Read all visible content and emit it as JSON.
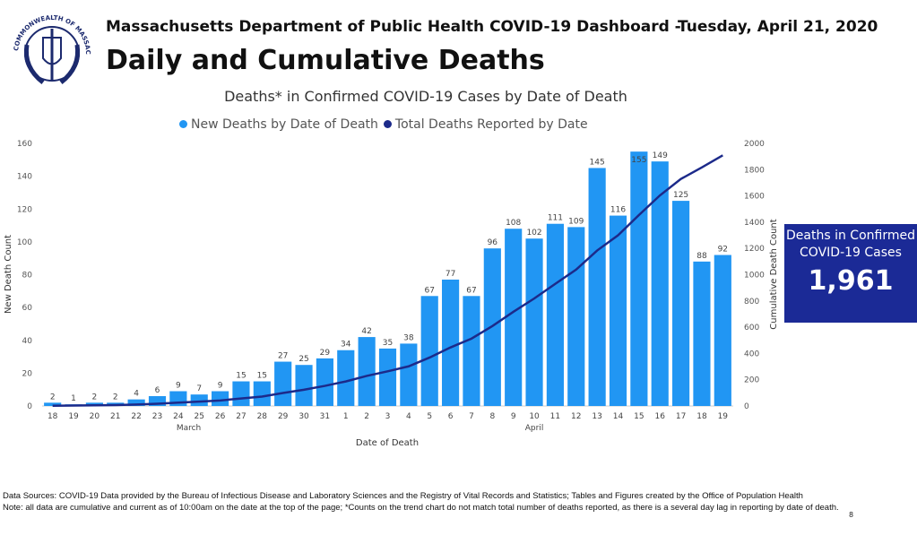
{
  "header": {
    "logo_text": "COMMONWEALTH OF MASSACHUSETTS DEPARTMENT OF PUBLIC HEALTH",
    "title_line1": "Massachusetts Department of Public Health COVID-19 Dashboard -",
    "date": "Tuesday, April 21, 2020",
    "title_line2": "Daily and Cumulative Deaths"
  },
  "card": {
    "label": "Deaths in Confirmed COVID-19 Cases",
    "value": "1,961",
    "color": "#1b2a96"
  },
  "footer": {
    "sources": "Data Sources: COVID-19 Data provided by the Bureau of Infectious Disease and Laboratory Sciences and the Registry of Vital Records and Statistics; Tables and Figures created by the Office of Population Health",
    "note": "Note: all data are cumulative and current as of 10:00am on the date at the top of the page; *Counts on the trend chart do not match total number of deaths reported, as there is a several day lag in reporting by date of death.",
    "page_number": "8"
  },
  "chart_data": {
    "type": "bar+line",
    "title": "Deaths* in Confirmed COVID-19 Cases by Date of Death",
    "xlabel": "Date of Death",
    "ylabel": "New Death Count",
    "y2label": "Cumulative Death Count",
    "ylim": [
      0,
      160
    ],
    "y2lim": [
      0,
      2000
    ],
    "yticks": [
      0,
      20,
      40,
      60,
      80,
      100,
      120,
      140,
      160
    ],
    "y2ticks": [
      0,
      200,
      400,
      600,
      800,
      1000,
      1200,
      1400,
      1600,
      1800,
      2000
    ],
    "grid": false,
    "legend_placement": "top",
    "categories": [
      "18",
      "19",
      "20",
      "21",
      "22",
      "23",
      "24",
      "25",
      "26",
      "27",
      "28",
      "29",
      "30",
      "31",
      "1",
      "2",
      "3",
      "4",
      "5",
      "6",
      "7",
      "8",
      "9",
      "10",
      "11",
      "12",
      "13",
      "14",
      "15",
      "16",
      "17",
      "18",
      "19"
    ],
    "month_labels": [
      {
        "label": "March",
        "start": 0,
        "end": 13
      },
      {
        "label": "April",
        "start": 14,
        "end": 32
      }
    ],
    "series": [
      {
        "name": "New Deaths by Date of Death",
        "kind": "bar",
        "axis": "left",
        "color": "#2196f3",
        "values": [
          2,
          1,
          2,
          2,
          4,
          6,
          9,
          7,
          9,
          15,
          15,
          27,
          25,
          29,
          34,
          42,
          35,
          38,
          67,
          77,
          67,
          96,
          108,
          102,
          111,
          109,
          145,
          116,
          155,
          149,
          125,
          88,
          92
        ]
      },
      {
        "name": "Total Deaths Reported by Date",
        "kind": "line",
        "axis": "right",
        "color": "#1c2a8a",
        "values": [
          2,
          3,
          5,
          7,
          11,
          17,
          26,
          33,
          42,
          57,
          72,
          99,
          124,
          153,
          187,
          229,
          264,
          302,
          369,
          446,
          513,
          609,
          717,
          819,
          930,
          1039,
          1184,
          1300,
          1455,
          1604,
          1729,
          1817,
          1909
        ]
      }
    ]
  }
}
